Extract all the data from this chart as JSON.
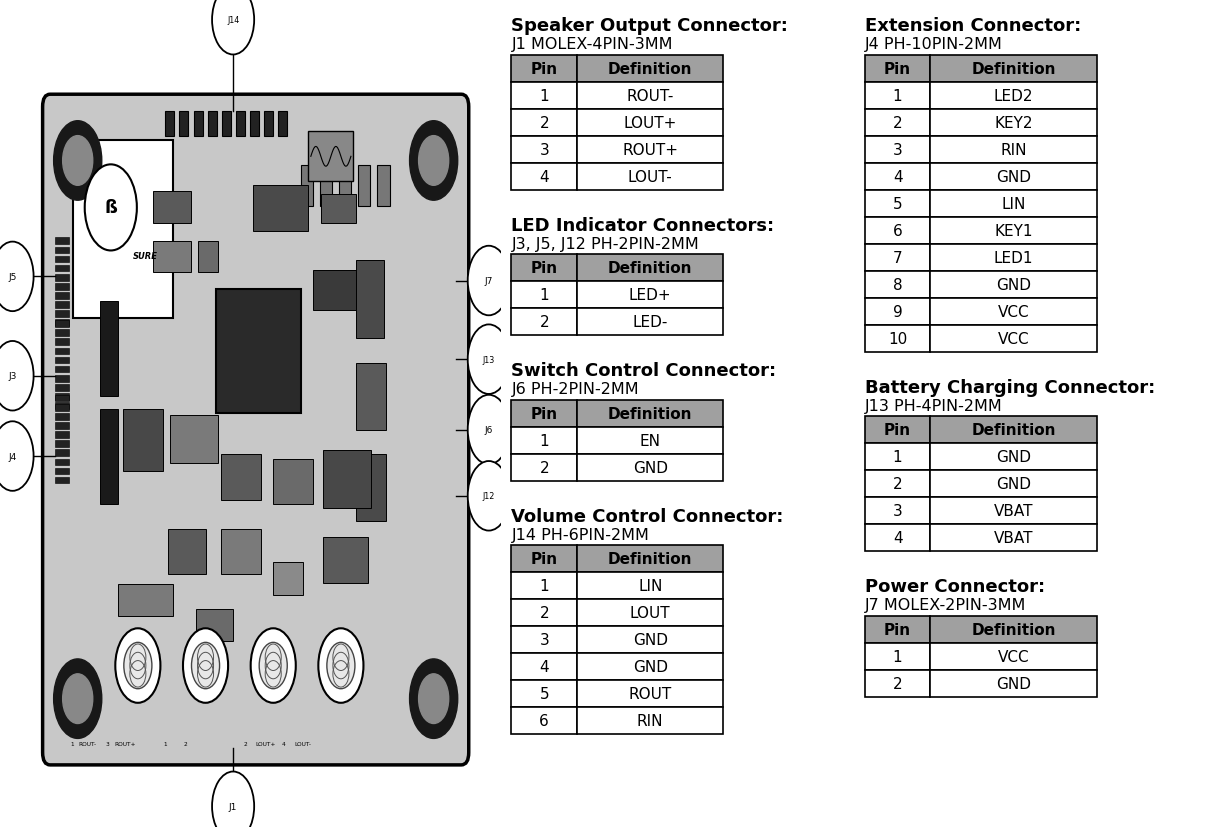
{
  "bg_color": "#ffffff",
  "table_header_bg": "#a0a0a0",
  "table_header_fg": "#000000",
  "title_fontsize": 11.5,
  "subtitle_fontsize": 10.5,
  "table_fontsize": 10,
  "tables": {
    "speaker_output": {
      "title": "Speaker Output Connector:",
      "subtitle": "J1 MOLEX-4PIN-3MM",
      "headers": [
        "Pin",
        "Definition"
      ],
      "rows": [
        [
          "1",
          "ROUT-"
        ],
        [
          "2",
          "LOUT+"
        ],
        [
          "3",
          "ROUT+"
        ],
        [
          "4",
          "LOUT-"
        ]
      ]
    },
    "led_indicator": {
      "title": "LED Indicator Connectors:",
      "subtitle": "J3, J5, J12 PH-2PIN-2MM",
      "headers": [
        "Pin",
        "Definition"
      ],
      "rows": [
        [
          "1",
          "LED+"
        ],
        [
          "2",
          "LED-"
        ]
      ]
    },
    "switch_control": {
      "title": "Switch Control Connector:",
      "subtitle": "J6 PH-2PIN-2MM",
      "headers": [
        "Pin",
        "Definition"
      ],
      "rows": [
        [
          "1",
          "EN"
        ],
        [
          "2",
          "GND"
        ]
      ]
    },
    "volume_control": {
      "title": "Volume Control Connector:",
      "subtitle": "J14 PH-6PIN-2MM",
      "headers": [
        "Pin",
        "Definition"
      ],
      "rows": [
        [
          "1",
          "LIN"
        ],
        [
          "2",
          "LOUT"
        ],
        [
          "3",
          "GND"
        ],
        [
          "4",
          "GND"
        ],
        [
          "5",
          "ROUT"
        ],
        [
          "6",
          "RIN"
        ]
      ]
    },
    "extension": {
      "title": "Extension Connector:",
      "subtitle": "J4 PH-10PIN-2MM",
      "headers": [
        "Pin",
        "Definition"
      ],
      "rows": [
        [
          "1",
          "LED2"
        ],
        [
          "2",
          "KEY2"
        ],
        [
          "3",
          "RIN"
        ],
        [
          "4",
          "GND"
        ],
        [
          "5",
          "LIN"
        ],
        [
          "6",
          "KEY1"
        ],
        [
          "7",
          "LED1"
        ],
        [
          "8",
          "GND"
        ],
        [
          "9",
          "VCC"
        ],
        [
          "10",
          "VCC"
        ]
      ]
    },
    "battery_charging": {
      "title": "Battery Charging Connector:",
      "subtitle": "J13 PH-4PIN-2MM",
      "headers": [
        "Pin",
        "Definition"
      ],
      "rows": [
        [
          "1",
          "GND"
        ],
        [
          "2",
          "GND"
        ],
        [
          "3",
          "VBAT"
        ],
        [
          "4",
          "VBAT"
        ]
      ]
    },
    "power": {
      "title": "Power Connector:",
      "subtitle": "J7 MOLEX-2PIN-3MM",
      "headers": [
        "Pin",
        "Definition"
      ],
      "rows": [
        [
          "1",
          "VCC"
        ],
        [
          "2",
          "GND"
        ]
      ]
    }
  }
}
